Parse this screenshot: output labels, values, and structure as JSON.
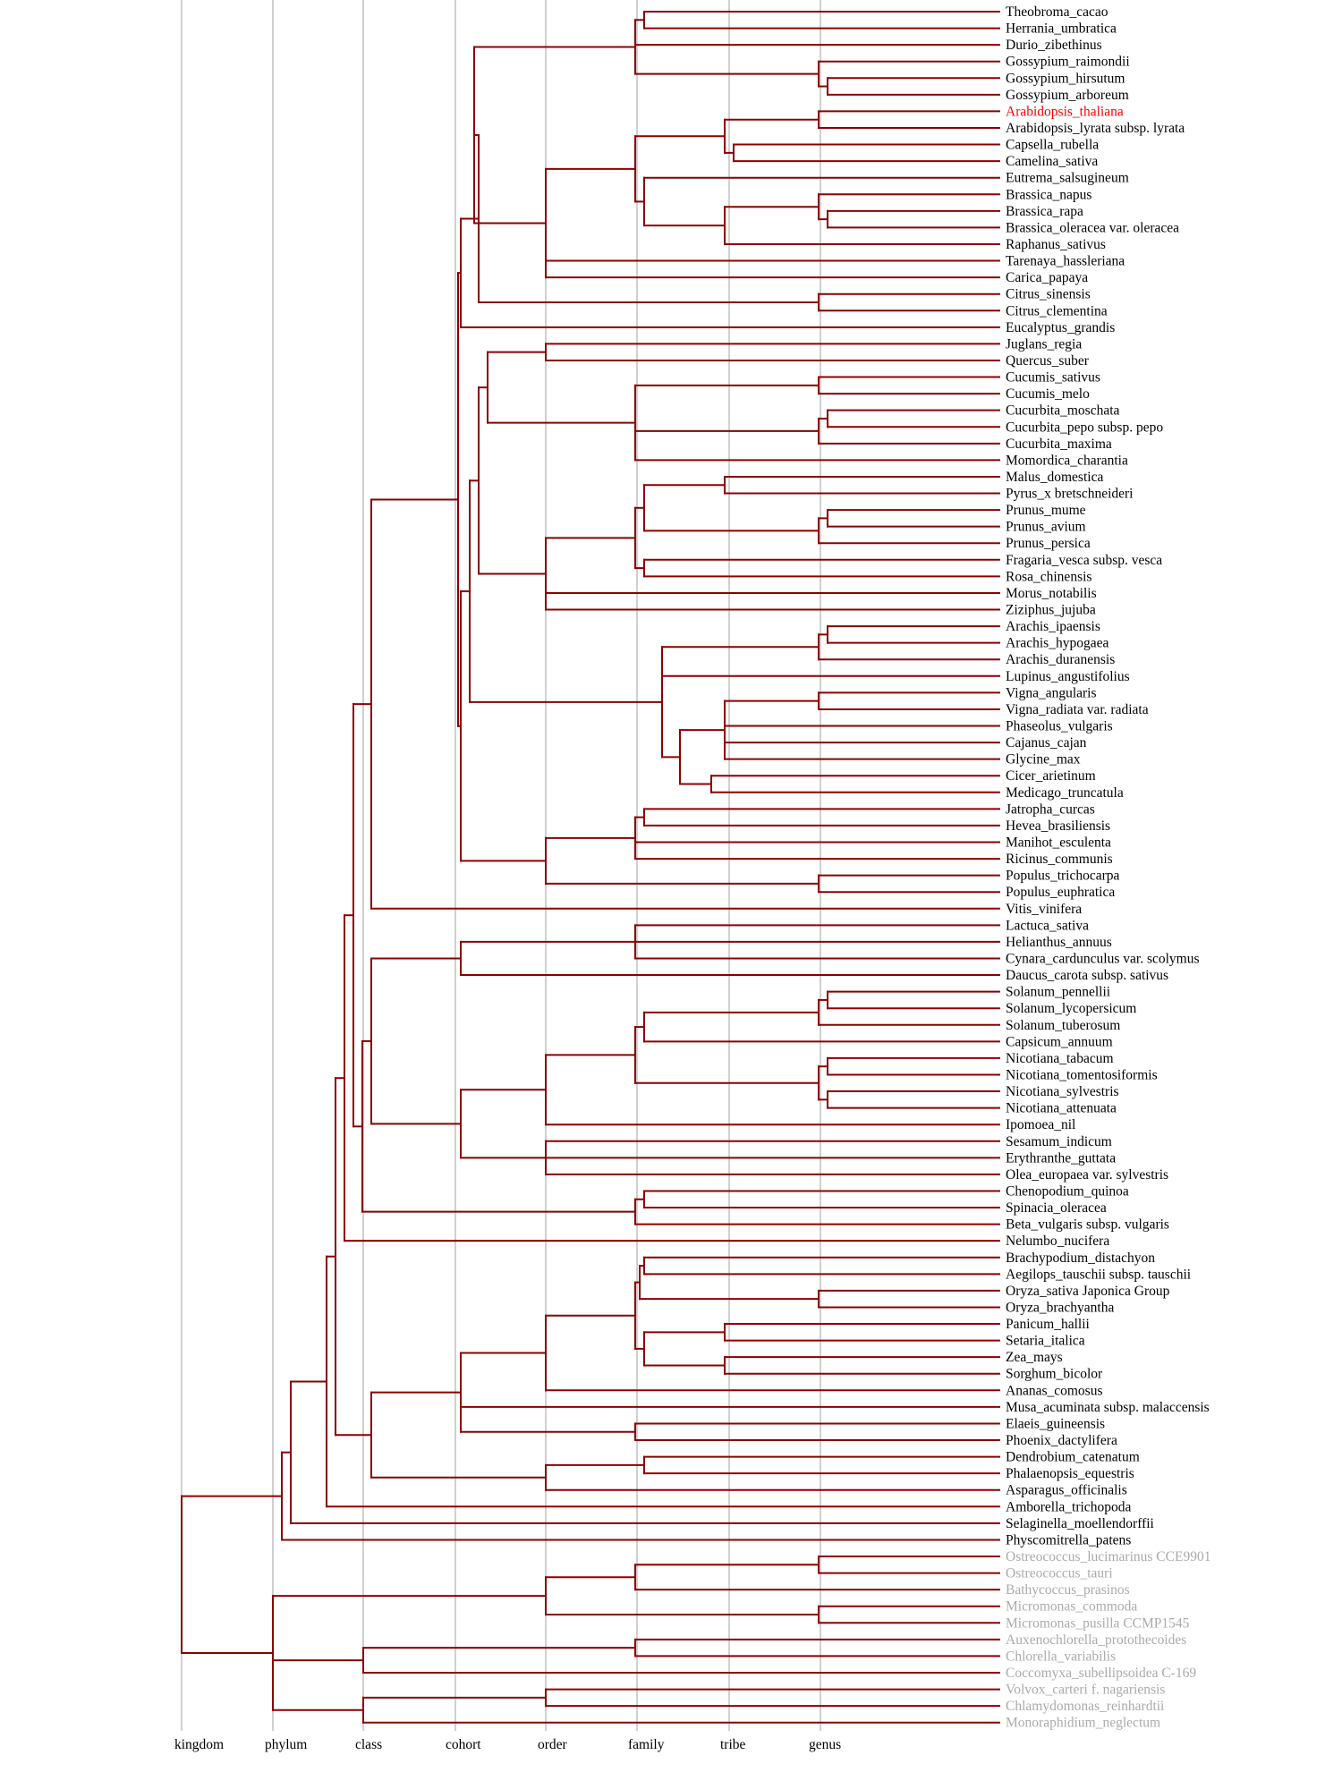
{
  "colors": {
    "branch": "#8b0000",
    "rank_line": "#b0b0b0",
    "default_label": "#000000",
    "highlight_label": "#ff0000",
    "muted_label": "#aaaaaa"
  },
  "ranks": [
    "kingdom",
    "phylum",
    "class",
    "cohort",
    "order",
    "family",
    "tribe",
    "genus"
  ],
  "leaves": [
    {
      "name": "Theobroma_cacao",
      "style": "default"
    },
    {
      "name": "Herrania_umbratica",
      "style": "default"
    },
    {
      "name": "Durio_zibethinus",
      "style": "default"
    },
    {
      "name": "Gossypium_raimondii",
      "style": "default"
    },
    {
      "name": "Gossypium_hirsutum",
      "style": "default"
    },
    {
      "name": "Gossypium_arboreum",
      "style": "default"
    },
    {
      "name": "Arabidopsis_thaliana",
      "style": "highlight"
    },
    {
      "name": "Arabidopsis_lyrata subsp. lyrata",
      "style": "default"
    },
    {
      "name": "Capsella_rubella",
      "style": "default"
    },
    {
      "name": "Camelina_sativa",
      "style": "default"
    },
    {
      "name": "Eutrema_salsugineum",
      "style": "default"
    },
    {
      "name": "Brassica_napus",
      "style": "default"
    },
    {
      "name": "Brassica_rapa",
      "style": "default"
    },
    {
      "name": "Brassica_oleracea var. oleracea",
      "style": "default"
    },
    {
      "name": "Raphanus_sativus",
      "style": "default"
    },
    {
      "name": "Tarenaya_hassleriana",
      "style": "default"
    },
    {
      "name": "Carica_papaya",
      "style": "default"
    },
    {
      "name": "Citrus_sinensis",
      "style": "default"
    },
    {
      "name": "Citrus_clementina",
      "style": "default"
    },
    {
      "name": "Eucalyptus_grandis",
      "style": "default"
    },
    {
      "name": "Juglans_regia",
      "style": "default"
    },
    {
      "name": "Quercus_suber",
      "style": "default"
    },
    {
      "name": "Cucumis_sativus",
      "style": "default"
    },
    {
      "name": "Cucumis_melo",
      "style": "default"
    },
    {
      "name": "Cucurbita_moschata",
      "style": "default"
    },
    {
      "name": "Cucurbita_pepo subsp. pepo",
      "style": "default"
    },
    {
      "name": "Cucurbita_maxima",
      "style": "default"
    },
    {
      "name": "Momordica_charantia",
      "style": "default"
    },
    {
      "name": "Malus_domestica",
      "style": "default"
    },
    {
      "name": "Pyrus_x bretschneideri",
      "style": "default"
    },
    {
      "name": "Prunus_mume",
      "style": "default"
    },
    {
      "name": "Prunus_avium",
      "style": "default"
    },
    {
      "name": "Prunus_persica",
      "style": "default"
    },
    {
      "name": "Fragaria_vesca subsp. vesca",
      "style": "default"
    },
    {
      "name": "Rosa_chinensis",
      "style": "default"
    },
    {
      "name": "Morus_notabilis",
      "style": "default"
    },
    {
      "name": "Ziziphus_jujuba",
      "style": "default"
    },
    {
      "name": "Arachis_ipaensis",
      "style": "default"
    },
    {
      "name": "Arachis_hypogaea",
      "style": "default"
    },
    {
      "name": "Arachis_duranensis",
      "style": "default"
    },
    {
      "name": "Lupinus_angustifolius",
      "style": "default"
    },
    {
      "name": "Vigna_angularis",
      "style": "default"
    },
    {
      "name": "Vigna_radiata var. radiata",
      "style": "default"
    },
    {
      "name": "Phaseolus_vulgaris",
      "style": "default"
    },
    {
      "name": "Cajanus_cajan",
      "style": "default"
    },
    {
      "name": "Glycine_max",
      "style": "default"
    },
    {
      "name": "Cicer_arietinum",
      "style": "default"
    },
    {
      "name": "Medicago_truncatula",
      "style": "default"
    },
    {
      "name": "Jatropha_curcas",
      "style": "default"
    },
    {
      "name": "Hevea_brasiliensis",
      "style": "default"
    },
    {
      "name": "Manihot_esculenta",
      "style": "default"
    },
    {
      "name": "Ricinus_communis",
      "style": "default"
    },
    {
      "name": "Populus_trichocarpa",
      "style": "default"
    },
    {
      "name": "Populus_euphratica",
      "style": "default"
    },
    {
      "name": "Vitis_vinifera",
      "style": "default"
    },
    {
      "name": "Lactuca_sativa",
      "style": "default"
    },
    {
      "name": "Helianthus_annuus",
      "style": "default"
    },
    {
      "name": "Cynara_cardunculus var. scolymus",
      "style": "default"
    },
    {
      "name": "Daucus_carota subsp. sativus",
      "style": "default"
    },
    {
      "name": "Solanum_pennellii",
      "style": "default"
    },
    {
      "name": "Solanum_lycopersicum",
      "style": "default"
    },
    {
      "name": "Solanum_tuberosum",
      "style": "default"
    },
    {
      "name": "Capsicum_annuum",
      "style": "default"
    },
    {
      "name": "Nicotiana_tabacum",
      "style": "default"
    },
    {
      "name": "Nicotiana_tomentosiformis",
      "style": "default"
    },
    {
      "name": "Nicotiana_sylvestris",
      "style": "default"
    },
    {
      "name": "Nicotiana_attenuata",
      "style": "default"
    },
    {
      "name": "Ipomoea_nil",
      "style": "default"
    },
    {
      "name": "Sesamum_indicum",
      "style": "default"
    },
    {
      "name": "Erythranthe_guttata",
      "style": "default"
    },
    {
      "name": "Olea_europaea var. sylvestris",
      "style": "default"
    },
    {
      "name": "Chenopodium_quinoa",
      "style": "default"
    },
    {
      "name": "Spinacia_oleracea",
      "style": "default"
    },
    {
      "name": "Beta_vulgaris subsp. vulgaris",
      "style": "default"
    },
    {
      "name": "Nelumbo_nucifera",
      "style": "default"
    },
    {
      "name": "Brachypodium_distachyon",
      "style": "default"
    },
    {
      "name": "Aegilops_tauschii subsp. tauschii",
      "style": "default"
    },
    {
      "name": "Oryza_sativa Japonica Group",
      "style": "default"
    },
    {
      "name": "Oryza_brachyantha",
      "style": "default"
    },
    {
      "name": "Panicum_hallii",
      "style": "default"
    },
    {
      "name": "Setaria_italica",
      "style": "default"
    },
    {
      "name": "Zea_mays",
      "style": "default"
    },
    {
      "name": "Sorghum_bicolor",
      "style": "default"
    },
    {
      "name": "Ananas_comosus",
      "style": "default"
    },
    {
      "name": "Musa_acuminata subsp. malaccensis",
      "style": "default"
    },
    {
      "name": "Elaeis_guineensis",
      "style": "default"
    },
    {
      "name": "Phoenix_dactylifera",
      "style": "default"
    },
    {
      "name": "Dendrobium_catenatum",
      "style": "default"
    },
    {
      "name": "Phalaenopsis_equestris",
      "style": "default"
    },
    {
      "name": "Asparagus_officinalis",
      "style": "default"
    },
    {
      "name": "Amborella_trichopoda",
      "style": "default"
    },
    {
      "name": "Selaginella_moellendorffii",
      "style": "default"
    },
    {
      "name": "Physcomitrella_patens",
      "style": "default"
    },
    {
      "name": "Ostreococcus_lucimarinus CCE9901",
      "style": "muted"
    },
    {
      "name": "Ostreococcus_tauri",
      "style": "muted"
    },
    {
      "name": "Bathycoccus_prasinos",
      "style": "muted"
    },
    {
      "name": "Micromonas_commoda",
      "style": "muted"
    },
    {
      "name": "Micromonas_pusilla CCMP1545",
      "style": "muted"
    },
    {
      "name": "Auxenochlorella_protothecoides",
      "style": "muted"
    },
    {
      "name": "Chlorella_variabilis",
      "style": "muted"
    },
    {
      "name": "Coccomyxa_subellipsoidea C-169",
      "style": "muted"
    },
    {
      "name": "Volvox_carteri f. nagariensis",
      "style": "muted"
    },
    {
      "name": "Chlamydomonas_reinhardtii",
      "style": "muted"
    },
    {
      "name": "Monoraphidium_neglectum",
      "style": "muted"
    }
  ]
}
